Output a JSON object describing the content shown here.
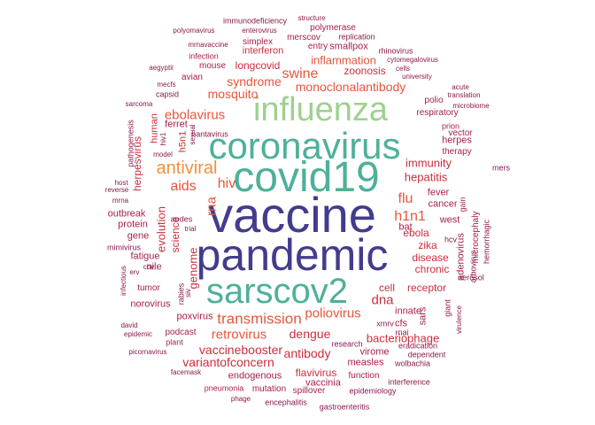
{
  "palette": {
    "indigo": "#433c8c",
    "teal": "#4fb09a",
    "mint": "#9ed18f",
    "orange": "#f2913d",
    "coral": "#e8553c",
    "red": "#cb2e3e",
    "crimson": "#a81e4b",
    "maroon": "#8a1a4d"
  },
  "words": [
    {
      "text": "vaccine",
      "color": "indigo"
    },
    {
      "text": "pandemic",
      "color": "indigo"
    },
    {
      "text": "coronavirus",
      "color": "teal"
    },
    {
      "text": "covid19",
      "color": "teal"
    },
    {
      "text": "sarscov2",
      "color": "teal"
    },
    {
      "text": "influenza",
      "color": "mint"
    },
    {
      "text": "antiviral",
      "color": "orange"
    },
    {
      "text": "transmission",
      "color": "coral"
    },
    {
      "text": "monoclonalantibody",
      "color": "coral"
    },
    {
      "text": "inflammation",
      "color": "coral"
    },
    {
      "text": "swine",
      "color": "coral"
    },
    {
      "text": "syndrome",
      "color": "coral"
    },
    {
      "text": "mosquito",
      "color": "coral"
    },
    {
      "text": "ebolavirus",
      "color": "coral"
    },
    {
      "text": "aids",
      "color": "coral"
    },
    {
      "text": "hiv",
      "color": "coral"
    },
    {
      "text": "rna",
      "color": "coral"
    },
    {
      "text": "flu",
      "color": "coral"
    },
    {
      "text": "h1n1",
      "color": "coral"
    },
    {
      "text": "retrovirus",
      "color": "coral"
    },
    {
      "text": "poliovirus",
      "color": "coral"
    },
    {
      "text": "dengue",
      "color": "red"
    },
    {
      "text": "antibody",
      "color": "red"
    },
    {
      "text": "vaccinebooster",
      "color": "red"
    },
    {
      "text": "variantofconcern",
      "color": "red"
    },
    {
      "text": "bacteriophage",
      "color": "red"
    },
    {
      "text": "hepatitis",
      "color": "red"
    },
    {
      "text": "immunity",
      "color": "red"
    },
    {
      "text": "longcovid",
      "color": "red"
    },
    {
      "text": "zoonosis",
      "color": "red"
    },
    {
      "text": "dna",
      "color": "red"
    },
    {
      "text": "cell",
      "color": "red"
    },
    {
      "text": "receptor",
      "color": "red"
    },
    {
      "text": "flavivirus",
      "color": "red"
    },
    {
      "text": "evolution",
      "color": "red"
    },
    {
      "text": "genome",
      "color": "red"
    },
    {
      "text": "science",
      "color": "red"
    },
    {
      "text": "herpesvirus",
      "color": "red"
    },
    {
      "text": "h5n1",
      "color": "red"
    },
    {
      "text": "human",
      "color": "red"
    },
    {
      "text": "ebola",
      "color": "red"
    },
    {
      "text": "disease",
      "color": "red"
    },
    {
      "text": "chronic",
      "color": "red"
    },
    {
      "text": "zika",
      "color": "red"
    },
    {
      "text": "fever",
      "color": "crimson"
    },
    {
      "text": "cancer",
      "color": "crimson"
    },
    {
      "text": "bat",
      "color": "crimson"
    },
    {
      "text": "west",
      "color": "crimson"
    },
    {
      "text": "innate",
      "color": "crimson"
    },
    {
      "text": "sars",
      "color": "crimson"
    },
    {
      "text": "cfs",
      "color": "crimson"
    },
    {
      "text": "xmrv",
      "color": "maroon"
    },
    {
      "text": "rnai",
      "color": "maroon"
    },
    {
      "text": "interferon",
      "color": "red"
    },
    {
      "text": "mouse",
      "color": "crimson"
    },
    {
      "text": "avian",
      "color": "crimson"
    },
    {
      "text": "ferret",
      "color": "crimson"
    },
    {
      "text": "outbreak",
      "color": "crimson"
    },
    {
      "text": "protein",
      "color": "crimson"
    },
    {
      "text": "gene",
      "color": "crimson"
    },
    {
      "text": "fatigue",
      "color": "crimson"
    },
    {
      "text": "nile",
      "color": "crimson"
    },
    {
      "text": "tumor",
      "color": "crimson"
    },
    {
      "text": "norovirus",
      "color": "crimson"
    },
    {
      "text": "poxvirus",
      "color": "crimson"
    },
    {
      "text": "podcast",
      "color": "crimson"
    },
    {
      "text": "plant",
      "color": "crimson"
    },
    {
      "text": "endogenous",
      "color": "crimson"
    },
    {
      "text": "vaccinia",
      "color": "crimson"
    },
    {
      "text": "measles",
      "color": "crimson"
    },
    {
      "text": "virome",
      "color": "crimson"
    },
    {
      "text": "mutation",
      "color": "crimson"
    },
    {
      "text": "pneumonia",
      "color": "crimson"
    },
    {
      "text": "spillover",
      "color": "crimson"
    },
    {
      "text": "function",
      "color": "crimson"
    },
    {
      "text": "polio",
      "color": "crimson"
    },
    {
      "text": "respiratory",
      "color": "crimson"
    },
    {
      "text": "herpes",
      "color": "crimson"
    },
    {
      "text": "therapy",
      "color": "crimson"
    },
    {
      "text": "vector",
      "color": "crimson"
    },
    {
      "text": "prion",
      "color": "crimson"
    },
    {
      "text": "entry",
      "color": "crimson"
    },
    {
      "text": "smallpox",
      "color": "crimson"
    },
    {
      "text": "merscov",
      "color": "crimson"
    },
    {
      "text": "polymerase",
      "color": "crimson"
    },
    {
      "text": "simplex",
      "color": "crimson"
    },
    {
      "text": "replication",
      "color": "maroon"
    },
    {
      "text": "infection",
      "color": "crimson"
    },
    {
      "text": "hantavirus",
      "color": "maroon"
    },
    {
      "text": "adenovirus",
      "color": "crimson"
    },
    {
      "text": "microcephaly",
      "color": "crimson"
    },
    {
      "text": "gain",
      "color": "crimson"
    },
    {
      "text": "hemorrhagic",
      "color": "maroon"
    },
    {
      "text": "arbovirus",
      "color": "maroon"
    },
    {
      "text": "hcv",
      "color": "maroon"
    },
    {
      "text": "aerosol",
      "color": "maroon"
    },
    {
      "text": "giant",
      "color": "maroon"
    },
    {
      "text": "virulence",
      "color": "maroon"
    },
    {
      "text": "mers",
      "color": "maroon"
    },
    {
      "text": "research",
      "color": "maroon"
    },
    {
      "text": "eradication",
      "color": "maroon"
    },
    {
      "text": "dependent",
      "color": "maroon"
    },
    {
      "text": "wolbachia",
      "color": "maroon"
    },
    {
      "text": "interference",
      "color": "maroon"
    },
    {
      "text": "epidemiology",
      "color": "maroon"
    },
    {
      "text": "gastroenteritis",
      "color": "maroon"
    },
    {
      "text": "encephalitis",
      "color": "maroon"
    },
    {
      "text": "phage",
      "color": "maroon"
    },
    {
      "text": "facemask",
      "color": "maroon"
    },
    {
      "text": "picornavirus",
      "color": "maroon"
    },
    {
      "text": "epidemic",
      "color": "maroon"
    },
    {
      "text": "david",
      "color": "maroon"
    },
    {
      "text": "infectious",
      "color": "maroon"
    },
    {
      "text": "mimivirus",
      "color": "maroon"
    },
    {
      "text": "mrna",
      "color": "maroon"
    },
    {
      "text": "reverse",
      "color": "maroon"
    },
    {
      "text": "host",
      "color": "maroon"
    },
    {
      "text": "erv",
      "color": "maroon"
    },
    {
      "text": "cov",
      "color": "maroon"
    },
    {
      "text": "rabies",
      "color": "maroon"
    },
    {
      "text": "siv",
      "color": "maroon"
    },
    {
      "text": "trial",
      "color": "maroon"
    },
    {
      "text": "aedes",
      "color": "maroon"
    },
    {
      "text": "model",
      "color": "maroon"
    },
    {
      "text": "hiv1",
      "color": "maroon"
    },
    {
      "text": "sexual",
      "color": "maroon"
    },
    {
      "text": "pathogenesis",
      "color": "maroon"
    },
    {
      "text": "sarcoma",
      "color": "maroon"
    },
    {
      "text": "capsid",
      "color": "maroon"
    },
    {
      "text": "mecfs",
      "color": "maroon"
    },
    {
      "text": "aegyptii",
      "color": "maroon"
    },
    {
      "text": "mrnavaccine",
      "color": "maroon"
    },
    {
      "text": "polyomavirus",
      "color": "maroon"
    },
    {
      "text": "immunodeficiency",
      "color": "maroon"
    },
    {
      "text": "structure",
      "color": "maroon"
    },
    {
      "text": "enterovirus",
      "color": "maroon"
    },
    {
      "text": "rhinovirus",
      "color": "maroon"
    },
    {
      "text": "cytomegalovirus",
      "color": "maroon"
    },
    {
      "text": "cells",
      "color": "maroon"
    },
    {
      "text": "university",
      "color": "maroon"
    },
    {
      "text": "acute",
      "color": "maroon"
    },
    {
      "text": "translation",
      "color": "maroon"
    },
    {
      "text": "microbiome",
      "color": "maroon"
    }
  ]
}
